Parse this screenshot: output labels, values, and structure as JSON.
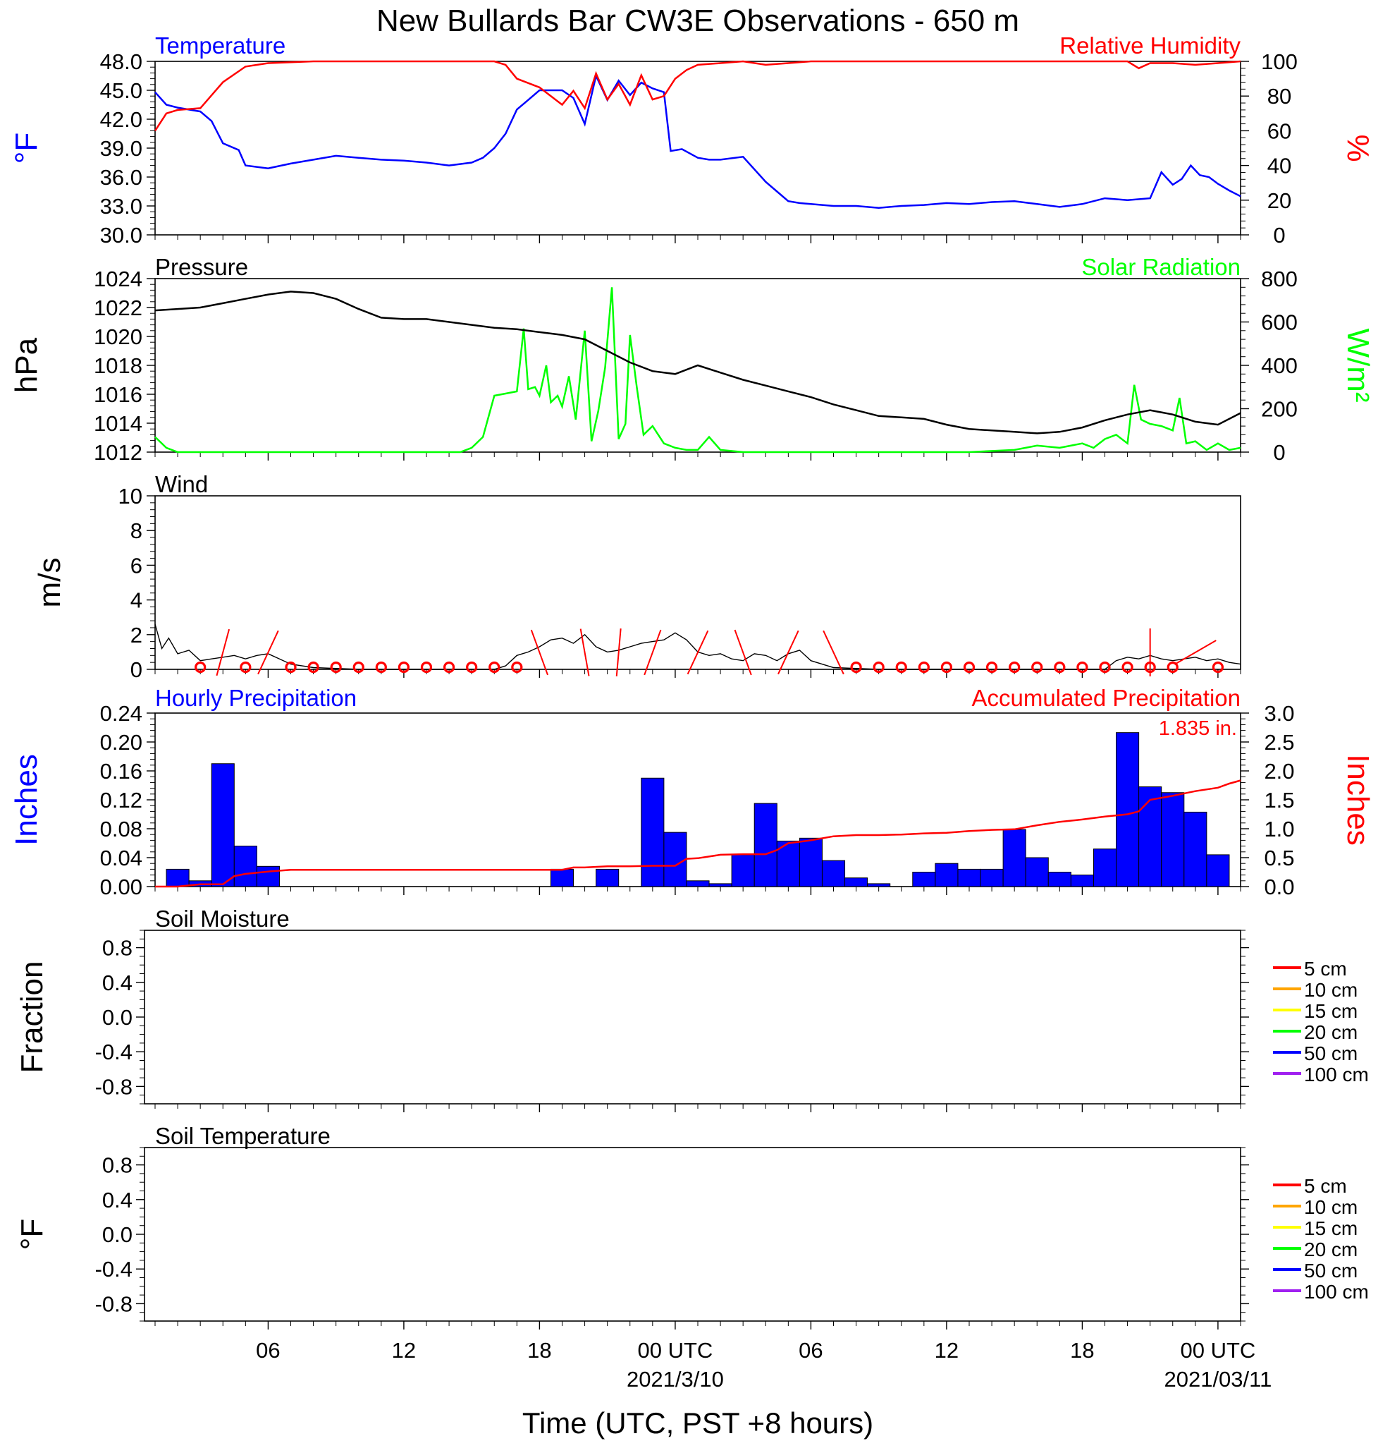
{
  "figure": {
    "title": "New Bullards Bar CW3E Observations - 650 m",
    "xlabel": "Time (UTC, PST +8 hours)",
    "x_ticks": [
      {
        "hour": 6,
        "label": "06",
        "date": ""
      },
      {
        "hour": 12,
        "label": "12",
        "date": ""
      },
      {
        "hour": 18,
        "label": "18",
        "date": ""
      },
      {
        "hour": 24,
        "label": "00 UTC",
        "date": "2021/3/10"
      },
      {
        "hour": 30,
        "label": "06",
        "date": ""
      },
      {
        "hour": 36,
        "label": "12",
        "date": ""
      },
      {
        "hour": 42,
        "label": "18",
        "date": ""
      },
      {
        "hour": 48,
        "label": "00 UTC",
        "date": "2021/03/11"
      }
    ],
    "x_range_hours": [
      1,
      49
    ],
    "colors": {
      "blue": "#0000ff",
      "red": "#ff0000",
      "green": "#00ff00",
      "black": "#000000"
    }
  },
  "panels": {
    "temp": {
      "left_title": "Temperature",
      "right_title": "Relative Humidity",
      "left_label": "°F",
      "right_label": "%",
      "left_ticks": [
        "48.0",
        "45.0",
        "42.0",
        "39.0",
        "36.0",
        "33.0",
        "30.0"
      ],
      "right_ticks": [
        "100",
        "80",
        "60",
        "40",
        "20",
        "0"
      ]
    },
    "pressure": {
      "left_title": "Pressure",
      "right_title": "Solar Radiation",
      "left_label": "hPa",
      "right_label": "W/m²",
      "left_ticks": [
        "1024",
        "1022",
        "1020",
        "1018",
        "1016",
        "1014",
        "1012"
      ],
      "right_ticks": [
        "800",
        "600",
        "400",
        "200",
        "0"
      ]
    },
    "wind": {
      "left_title": "Wind",
      "left_label": "m/s",
      "left_ticks": [
        "10",
        "8",
        "6",
        "4",
        "2",
        "0"
      ]
    },
    "precip": {
      "left_title": "Hourly Precipitation",
      "right_title": "Accumulated Precipitation",
      "left_label": "Inches",
      "right_label": "Inches",
      "left_ticks": [
        "0.24",
        "0.20",
        "0.16",
        "0.12",
        "0.08",
        "0.04",
        "0.00"
      ],
      "right_ticks": [
        "3.0",
        "2.5",
        "2.0",
        "1.5",
        "1.0",
        "0.5",
        "0.0"
      ],
      "annotation": "1.835 in."
    },
    "soil_moist": {
      "left_title": "Soil Moisture",
      "left_label": "Fraction",
      "left_ticks": [
        "0.8",
        "0.4",
        "0.0",
        "-0.4",
        "-0.8"
      ]
    },
    "soil_temp": {
      "left_title": "Soil Temperature",
      "left_label": "°F",
      "left_ticks": [
        "0.8",
        "0.4",
        "0.0",
        "-0.4",
        "-0.8"
      ]
    }
  },
  "soil_legend": [
    {
      "label": "5 cm",
      "color": "#ff0000"
    },
    {
      "label": "10 cm",
      "color": "#ffa500"
    },
    {
      "label": "15 cm",
      "color": "#ffff00"
    },
    {
      "label": "20 cm",
      "color": "#00ff00"
    },
    {
      "label": "50 cm",
      "color": "#0000ff"
    },
    {
      "label": "100 cm",
      "color": "#a020f0"
    }
  ],
  "chart_data": [
    {
      "type": "line",
      "panel": "temp",
      "x_unit": "hours since 2021-03-09 00 UTC",
      "ylim_left": [
        30,
        48
      ],
      "ylim_right": [
        0,
        100
      ],
      "series": [
        {
          "name": "Temperature",
          "axis": "left",
          "color": "#0000ff",
          "x": [
            1,
            1.5,
            2,
            3,
            3.5,
            4,
            4.7,
            5,
            6,
            7,
            8,
            9,
            10,
            11,
            12,
            13,
            14,
            15,
            15.5,
            16,
            16.5,
            17,
            17.5,
            18,
            19,
            19.5,
            20,
            20.5,
            21,
            21.5,
            22,
            22.5,
            23,
            23.5,
            23.8,
            24.3,
            25,
            25.5,
            26,
            27,
            28,
            28.5,
            29,
            29.5,
            30,
            31,
            32,
            33,
            34,
            35,
            35.5,
            36,
            37,
            38,
            39,
            40,
            41,
            42,
            43,
            44,
            45,
            45.5,
            46,
            46.4,
            46.8,
            47.2,
            47.6,
            48,
            48.5,
            49
          ],
          "y": [
            44.8,
            43.5,
            43.2,
            42.8,
            41.8,
            39.5,
            38.8,
            37.2,
            36.9,
            37.4,
            37.8,
            38.2,
            38.0,
            37.8,
            37.7,
            37.5,
            37.2,
            37.5,
            38.0,
            39.0,
            40.5,
            43.0,
            44.0,
            45.0,
            45.0,
            44.2,
            41.5,
            46.5,
            44.0,
            46.0,
            44.5,
            45.8,
            45.2,
            44.8,
            38.7,
            38.9,
            38.0,
            37.8,
            37.8,
            38.1,
            35.5,
            34.5,
            33.5,
            33.3,
            33.2,
            33.0,
            33.0,
            32.8,
            33.0,
            33.1,
            33.2,
            33.3,
            33.2,
            33.4,
            33.5,
            33.2,
            32.9,
            33.2,
            33.8,
            33.6,
            33.8,
            36.5,
            35.2,
            35.8,
            37.2,
            36.2,
            36.0,
            35.3,
            34.6,
            34.0
          ]
        },
        {
          "name": "Relative Humidity",
          "axis": "right",
          "color": "#ff0000",
          "x": [
            1,
            1.5,
            2,
            3,
            4,
            5,
            6,
            8,
            10,
            12,
            14,
            15,
            16,
            16.5,
            17,
            18,
            19,
            19.5,
            20,
            20.5,
            21,
            21.5,
            22,
            22.5,
            23,
            23.5,
            24,
            24.5,
            25,
            26,
            27,
            28,
            29,
            30,
            32,
            34,
            36,
            38,
            40,
            42,
            44,
            44.5,
            45,
            46,
            47,
            48,
            49
          ],
          "y": [
            60,
            70,
            72,
            73,
            88,
            97,
            99,
            100,
            100,
            100,
            100,
            100,
            100,
            98,
            90,
            85,
            75,
            83,
            73,
            93,
            78,
            87,
            75,
            92,
            78,
            80,
            90,
            95,
            98,
            99,
            100,
            98,
            99,
            100,
            100,
            100,
            100,
            100,
            100,
            100,
            100,
            96,
            99,
            99,
            98,
            99,
            100
          ]
        }
      ]
    },
    {
      "type": "line",
      "panel": "pressure",
      "x_unit": "hours since 2021-03-09 00 UTC",
      "ylim_left": [
        1012,
        1024
      ],
      "ylim_right": [
        0,
        800
      ],
      "series": [
        {
          "name": "Pressure",
          "axis": "left",
          "color": "#000000",
          "x": [
            1,
            2,
            3,
            4,
            5,
            6,
            7,
            8,
            9,
            10,
            11,
            12,
            13,
            14,
            15,
            16,
            17,
            18,
            19,
            20,
            21,
            22,
            23,
            24,
            25,
            26,
            27,
            28,
            29,
            30,
            31,
            32,
            33,
            34,
            35,
            36,
            37,
            38,
            39,
            40,
            41,
            42,
            43,
            44,
            45,
            46,
            47,
            48,
            49
          ],
          "y": [
            1021.8,
            1021.9,
            1022.0,
            1022.3,
            1022.6,
            1022.9,
            1023.1,
            1023.0,
            1022.6,
            1021.9,
            1021.3,
            1021.2,
            1021.2,
            1021.0,
            1020.8,
            1020.6,
            1020.5,
            1020.3,
            1020.1,
            1019.8,
            1019.0,
            1018.2,
            1017.6,
            1017.4,
            1018.0,
            1017.5,
            1017.0,
            1016.6,
            1016.2,
            1015.8,
            1015.3,
            1014.9,
            1014.5,
            1014.4,
            1014.3,
            1013.9,
            1013.6,
            1013.5,
            1013.4,
            1013.3,
            1013.4,
            1013.7,
            1014.2,
            1014.6,
            1014.9,
            1014.6,
            1014.1,
            1013.9,
            1014.7
          ]
        },
        {
          "name": "Solar Radiation",
          "axis": "right",
          "color": "#00ff00",
          "x": [
            1,
            1.5,
            2,
            3,
            5,
            8,
            11,
            13,
            14.5,
            15,
            15.5,
            16,
            16.5,
            17,
            17.3,
            17.5,
            17.8,
            18,
            18.3,
            18.5,
            18.8,
            19,
            19.3,
            19.6,
            20,
            20.3,
            20.6,
            20.9,
            21.2,
            21.5,
            21.8,
            22,
            22.3,
            22.6,
            23,
            23.5,
            24,
            24.5,
            25,
            25.5,
            26,
            27,
            30,
            33,
            36,
            37,
            39,
            40,
            41,
            42,
            42.5,
            43,
            43.5,
            44,
            44.3,
            44.6,
            45,
            45.5,
            46,
            46.3,
            46.6,
            47,
            47.5,
            48,
            48.5,
            49
          ],
          "y": [
            70,
            20,
            0,
            0,
            0,
            0,
            0,
            0,
            0,
            20,
            70,
            260,
            270,
            280,
            570,
            290,
            300,
            260,
            400,
            230,
            260,
            210,
            350,
            150,
            560,
            50,
            190,
            390,
            760,
            60,
            130,
            540,
            300,
            80,
            120,
            40,
            20,
            10,
            10,
            70,
            10,
            0,
            0,
            0,
            0,
            0,
            10,
            30,
            20,
            40,
            20,
            60,
            80,
            40,
            310,
            150,
            130,
            120,
            100,
            250,
            40,
            50,
            10,
            40,
            10,
            20
          ]
        }
      ]
    },
    {
      "type": "line",
      "panel": "wind",
      "x_unit": "hours since 2021-03-09 00 UTC",
      "ylim": [
        0,
        10
      ],
      "series": [
        {
          "name": "Wind speed",
          "color": "#000000",
          "x": [
            1,
            1.3,
            1.6,
            2,
            2.5,
            3,
            3.5,
            4,
            4.5,
            5,
            5.5,
            6,
            6.5,
            7,
            8,
            10,
            12,
            14,
            15,
            16,
            16.5,
            17,
            17.5,
            18,
            18.5,
            19,
            19.5,
            20,
            20.5,
            21,
            21.5,
            22,
            22.5,
            23,
            23.5,
            24,
            24.5,
            25,
            25.5,
            26,
            26.5,
            27,
            27.5,
            28,
            28.5,
            29,
            29.5,
            30,
            31,
            33,
            36,
            40,
            43,
            43.5,
            44,
            44.5,
            45,
            45.5,
            46,
            46.5,
            47,
            47.5,
            48,
            48.5,
            49
          ],
          "y": [
            2.6,
            1.2,
            1.8,
            0.9,
            1.1,
            0.5,
            0.6,
            0.7,
            0.8,
            0.6,
            0.8,
            0.9,
            0.6,
            0.3,
            0.1,
            0,
            0,
            0,
            0,
            0,
            0.2,
            0.8,
            1.0,
            1.3,
            1.7,
            1.8,
            1.5,
            2.0,
            1.3,
            1.0,
            1.1,
            1.3,
            1.5,
            1.6,
            1.7,
            2.1,
            1.7,
            1.0,
            0.8,
            0.9,
            0.6,
            0.5,
            0.9,
            0.8,
            0.5,
            0.9,
            1.1,
            0.5,
            0.1,
            0,
            0,
            0,
            0,
            0.5,
            0.7,
            0.6,
            0.8,
            0.6,
            0.5,
            0.6,
            0.7,
            0.5,
            0.6,
            0.4,
            0.3
          ]
        }
      ],
      "calm_markers_hours": [
        3,
        5,
        7,
        8,
        9,
        10,
        11,
        12,
        13,
        14,
        15,
        16,
        17,
        32,
        33,
        34,
        35,
        36,
        37,
        38,
        39,
        40,
        41,
        42,
        43,
        44,
        45,
        46,
        48
      ],
      "barbs_hours": [
        4,
        6,
        18,
        20,
        21.5,
        23,
        25,
        27,
        29,
        31,
        45,
        47
      ]
    },
    {
      "type": "bar",
      "panel": "precip",
      "x_unit": "hours since 2021-03-09 00 UTC",
      "ylim_left": [
        0,
        0.24
      ],
      "ylim_right": [
        0,
        3.0
      ],
      "series": [
        {
          "name": "Hourly Precipitation",
          "axis": "left",
          "color": "#0000ff",
          "hours": [
            2,
            3,
            4,
            5,
            6,
            19,
            21,
            23,
            24,
            25,
            26,
            27,
            28,
            29,
            30,
            31,
            32,
            33,
            35,
            36,
            37,
            38,
            39,
            40,
            41,
            42,
            43,
            44,
            45,
            46,
            47,
            48
          ],
          "values": [
            0.024,
            0.008,
            0.17,
            0.056,
            0.028,
            0.024,
            0.024,
            0.15,
            0.075,
            0.008,
            0.004,
            0.044,
            0.115,
            0.063,
            0.067,
            0.036,
            0.012,
            0.004,
            0.02,
            0.032,
            0.024,
            0.024,
            0.079,
            0.04,
            0.02,
            0.016,
            0.052,
            0.213,
            0.138,
            0.13,
            0.103,
            0.044
          ]
        },
        {
          "name": "Accumulated Precipitation",
          "axis": "right",
          "color": "#ff0000",
          "x": [
            1,
            2,
            3,
            4,
            4.5,
            5,
            6,
            7,
            8,
            10,
            12,
            14,
            16,
            18,
            19,
            19.5,
            20,
            21,
            22,
            23,
            24,
            24.5,
            25,
            26,
            27,
            28,
            28.5,
            29,
            30,
            31,
            32,
            33,
            34,
            35,
            36,
            37,
            38,
            39,
            40,
            41,
            42,
            43,
            44,
            44.5,
            45,
            46,
            47,
            48,
            48.5,
            49
          ],
          "y": [
            0,
            0,
            0.04,
            0.04,
            0.18,
            0.22,
            0.26,
            0.29,
            0.29,
            0.29,
            0.29,
            0.29,
            0.29,
            0.29,
            0.29,
            0.33,
            0.33,
            0.35,
            0.35,
            0.36,
            0.36,
            0.48,
            0.49,
            0.55,
            0.56,
            0.56,
            0.63,
            0.75,
            0.8,
            0.87,
            0.89,
            0.89,
            0.9,
            0.92,
            0.93,
            0.96,
            0.98,
            0.99,
            1.06,
            1.12,
            1.16,
            1.21,
            1.25,
            1.3,
            1.5,
            1.57,
            1.65,
            1.71,
            1.78,
            1.835
          ]
        }
      ]
    },
    {
      "type": "line",
      "panel": "soil_moist",
      "ylim": [
        -1,
        1
      ],
      "series": []
    },
    {
      "type": "line",
      "panel": "soil_temp",
      "ylim": [
        -1,
        1
      ],
      "series": []
    }
  ]
}
